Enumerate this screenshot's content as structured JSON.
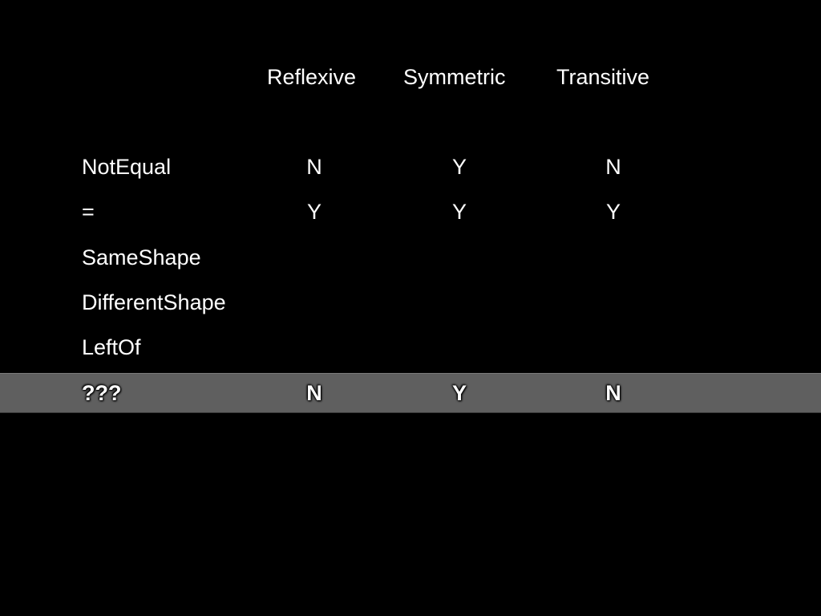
{
  "table": {
    "headers": [
      "Reflexive",
      "Symmetric",
      "Transitive"
    ],
    "rows": [
      {
        "label": "NotEqual",
        "values": [
          "N",
          "Y",
          "N"
        ]
      },
      {
        "label": "=",
        "values": [
          "Y",
          "Y",
          "Y"
        ]
      },
      {
        "label": "SameShape",
        "values": [
          "",
          "",
          ""
        ]
      },
      {
        "label": "DifferentShape",
        "values": [
          "",
          "",
          ""
        ]
      },
      {
        "label": "LeftOf",
        "values": [
          "",
          "",
          ""
        ]
      },
      {
        "label": "???",
        "values": [
          "N",
          "Y",
          "N"
        ]
      }
    ],
    "highlight_color": "#5f5f5f",
    "background_color": "#000000"
  }
}
